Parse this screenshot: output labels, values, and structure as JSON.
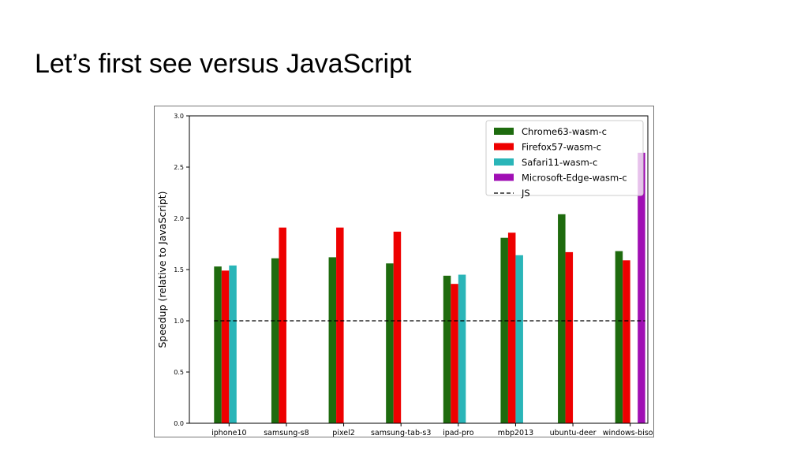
{
  "slide": {
    "title": "Let’s first see versus JavaScript"
  },
  "colors": {
    "Chrome63-wasm-c": "#1e6b0e",
    "Firefox57-wasm-c": "#ee0000",
    "Safari11-wasm-c": "#2ab5b8",
    "Microsoft-Edge-wasm-c": "#a00fb4",
    "JS": "#000000"
  },
  "chart_data": {
    "type": "bar",
    "title": "",
    "xlabel": "",
    "ylabel": "Speedup (relative to JavaScript)",
    "ylim": [
      0,
      3.0
    ],
    "yticks": [
      "0.0",
      "0.5",
      "1.0",
      "1.5",
      "2.0",
      "2.5",
      "3.0"
    ],
    "grid": false,
    "legend_position": "top-right",
    "categories": [
      "iphone10",
      "samsung-s8",
      "pixel2",
      "samsung-tab-s3",
      "ipad-pro",
      "mbp2013",
      "ubuntu-deer",
      "windows-bison"
    ],
    "series": [
      {
        "name": "Chrome63-wasm-c",
        "values": [
          1.53,
          1.61,
          1.62,
          1.56,
          1.44,
          1.81,
          2.04,
          1.68
        ]
      },
      {
        "name": "Firefox57-wasm-c",
        "values": [
          1.49,
          1.91,
          1.91,
          1.87,
          1.36,
          1.86,
          1.67,
          1.59
        ]
      },
      {
        "name": "Safari11-wasm-c",
        "values": [
          1.54,
          null,
          null,
          null,
          1.45,
          1.64,
          null,
          null
        ]
      },
      {
        "name": "Microsoft-Edge-wasm-c",
        "values": [
          null,
          null,
          null,
          null,
          null,
          null,
          null,
          2.64
        ]
      }
    ],
    "reference_line": {
      "name": "JS",
      "value": 1.0,
      "style": "dashed"
    }
  }
}
